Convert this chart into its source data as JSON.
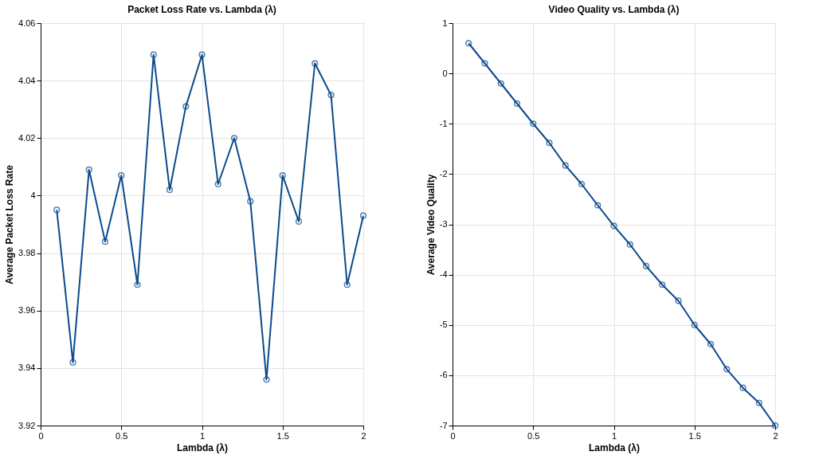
{
  "chart_data": [
    {
      "type": "line",
      "title": "Packet Loss Rate vs. Lambda (λ)",
      "xlabel": "Lambda (λ)",
      "ylabel": "Average Packet Loss Rate",
      "x": [
        0.1,
        0.2,
        0.3,
        0.4,
        0.5,
        0.6,
        0.7,
        0.8,
        0.9,
        1.0,
        1.1,
        1.2,
        1.3,
        1.4,
        1.5,
        1.6,
        1.7,
        1.8,
        1.9,
        2.0
      ],
      "series": [
        {
          "color": "#0b4a8c",
          "values": [
            3.995,
            3.942,
            4.009,
            3.984,
            4.007,
            3.969,
            4.049,
            4.002,
            4.031,
            4.049,
            4.004,
            4.02,
            3.998,
            3.936,
            4.007,
            3.991,
            4.046,
            4.035,
            3.969,
            3.993
          ]
        }
      ],
      "xlim": [
        0,
        2
      ],
      "xticks": [
        0,
        0.5,
        1,
        1.5,
        2
      ],
      "ylim": [
        3.92,
        4.06
      ],
      "yticks": [
        3.92,
        3.94,
        3.96,
        3.98,
        4,
        4.02,
        4.04,
        4.06
      ],
      "grid": true,
      "marker": "circle",
      "line_style": "solid"
    },
    {
      "type": "line",
      "title": "Video Quality vs. Lambda (λ)",
      "xlabel": "Lambda (λ)",
      "ylabel": "Average Video Quality",
      "x": [
        0.1,
        0.2,
        0.3,
        0.4,
        0.5,
        0.6,
        0.7,
        0.8,
        0.9,
        1.0,
        1.1,
        1.2,
        1.3,
        1.4,
        1.5,
        1.6,
        1.7,
        1.8,
        1.9,
        2.0
      ],
      "series": [
        {
          "color": "#0b4a8c",
          "values": [
            0.6,
            0.2,
            -0.2,
            -0.6,
            -1.0,
            -1.38,
            -1.83,
            -2.2,
            -2.62,
            -3.03,
            -3.4,
            -3.83,
            -4.2,
            -4.52,
            -5.0,
            -5.38,
            -5.88,
            -6.25,
            -6.55,
            -7.0
          ]
        }
      ],
      "xlim": [
        0,
        2
      ],
      "xticks": [
        0,
        0.5,
        1,
        1.5,
        2
      ],
      "ylim": [
        -7,
        1
      ],
      "yticks": [
        -7,
        -6,
        -5,
        -4,
        -3,
        -2,
        -1,
        0,
        1
      ],
      "grid": true,
      "marker": "circle",
      "line_style": "solid"
    }
  ]
}
